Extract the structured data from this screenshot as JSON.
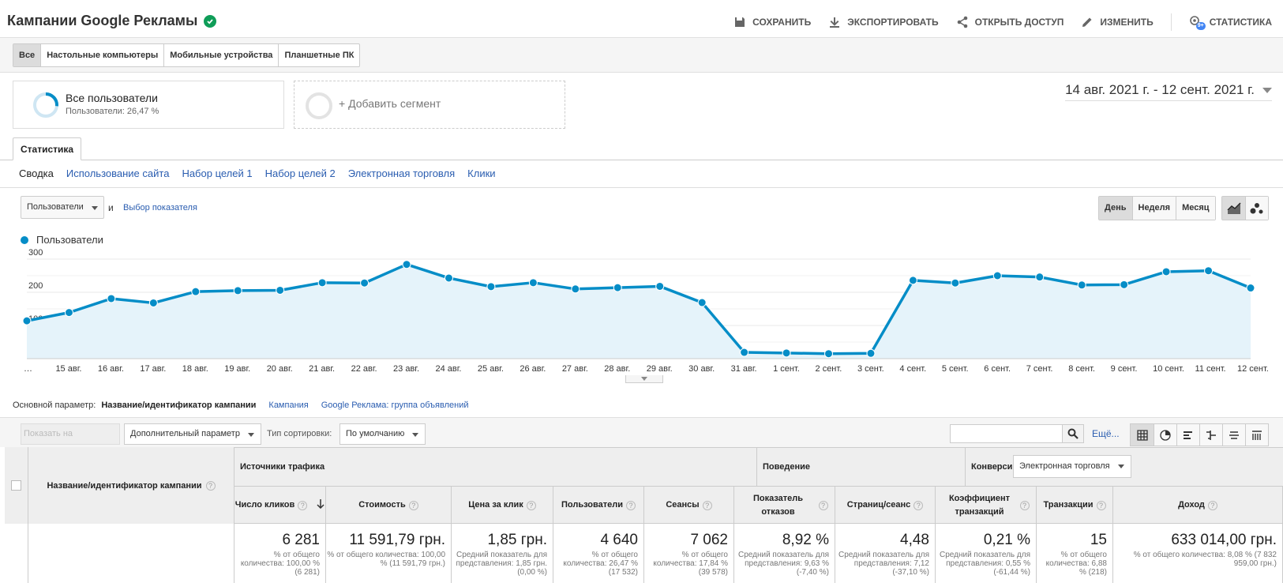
{
  "header": {
    "title": "Кампании Google Рекламы",
    "actions": {
      "save": "СОХРАНИТЬ",
      "export": "ЭКСПОРТИРОВАТЬ",
      "share": "ОТКРЫТЬ ДОСТУП",
      "edit": "ИЗМЕНИТЬ",
      "insights": "СТАТИСТИКА",
      "insights_badge": "9+"
    }
  },
  "device_tabs": [
    "Все",
    "Настольные компьютеры",
    "Мобильные устройства",
    "Планшетные ПК"
  ],
  "segment": {
    "title": "Все пользователи",
    "subtitle": "Пользователи: 26,47 %",
    "add_label": "+ Добавить сегмент"
  },
  "date_range": "14 авг. 2021 г. - 12 сент. 2021 г.",
  "stat_tab": "Статистика",
  "subnav": [
    "Сводка",
    "Использование сайта",
    "Набор целей 1",
    "Набор целей 2",
    "Электронная торговля",
    "Клики"
  ],
  "chart_controls": {
    "metric": "Пользователи",
    "and": "и",
    "pick_metric": "Выбор показателя",
    "periods": [
      "День",
      "Неделя",
      "Месяц"
    ]
  },
  "chart_data": {
    "type": "area",
    "series": [
      {
        "name": "Пользователи",
        "values": [
          114,
          139,
          181,
          168,
          202,
          205,
          206,
          229,
          228,
          284,
          243,
          217,
          229,
          210,
          214,
          218,
          169,
          19,
          17,
          15,
          16,
          236,
          228,
          250,
          246,
          222,
          223,
          262,
          265,
          213
        ]
      }
    ],
    "x": [
      "…",
      "15 авг.",
      "16 авг.",
      "17 авг.",
      "18 авг.",
      "19 авг.",
      "20 авг.",
      "21 авг.",
      "22 авг.",
      "23 авг.",
      "24 авг.",
      "25 авг.",
      "26 авг.",
      "27 авг.",
      "28 авг.",
      "29 авг.",
      "30 авг.",
      "31 авг.",
      "1 сент.",
      "2 сент.",
      "3 сент.",
      "4 сент.",
      "5 сент.",
      "6 сент.",
      "7 сент.",
      "8 сент.",
      "9 сент.",
      "10 сент.",
      "11 сент.",
      "12 сент."
    ],
    "y_ticks": [
      "300",
      "200",
      "100"
    ],
    "ylim": [
      0,
      300
    ],
    "color": "#058dc7",
    "fill": "#e5f3fa",
    "grid": true,
    "legend": "top-left"
  },
  "primary_dimension": {
    "label": "Основной параметр:",
    "active": "Название/идентификатор кампании",
    "options": [
      "Кампания",
      "Google Реклама: группа объявлений"
    ]
  },
  "toolbar": {
    "plot_button": "Показать на диаграмме",
    "secondary_dimension": "Дополнительный параметр",
    "sort_label": "Тип сортировки:",
    "sort_value": "По умолчанию",
    "search_placeholder": "",
    "more": "Ещё..."
  },
  "table": {
    "dimension_header": "Название/идентификатор кампании",
    "groups": {
      "acquisition": "Источники трафика",
      "behavior": "Поведение",
      "conversions": "Конверсии",
      "conversions_select": "Электронная торговля"
    },
    "columns": [
      {
        "label": "Число кликов",
        "total": "6 281",
        "sub": "% от общего количества: 100,00 % (6 281)"
      },
      {
        "label": "Стоимость",
        "total": "11 591,79 грн.",
        "sub": "% от общего количества: 100,00 % (11 591,79 грн.)"
      },
      {
        "label": "Цена за клик",
        "total": "1,85 грн.",
        "sub": "Средний показатель для представления: 1,85 грн. (0,00 %)"
      },
      {
        "label": "Пользователи",
        "total": "4 640",
        "sub": "% от общего количества: 26,47 % (17 532)"
      },
      {
        "label": "Сеансы",
        "total": "7 062",
        "sub": "% от общего количества: 17,84 % (39 578)"
      },
      {
        "label": "Показатель отказов",
        "total": "8,92 %",
        "sub": "Средний показатель для представления: 9,63 % (-7,40 %)"
      },
      {
        "label": "Страниц/сеанс",
        "total": "4,48",
        "sub": "Средний показатель для представления: 7,12 (-37,10 %)"
      },
      {
        "label": "Коэффициент транзакций",
        "total": "0,21 %",
        "sub": "Средний показатель для представления: 0,55 % (-61,44 %)"
      },
      {
        "label": "Транзакции",
        "total": "15",
        "sub": "% от общего количества: 6,88 % (218)"
      },
      {
        "label": "Доход",
        "total": "633 014,00 грн.",
        "sub": "% от общего количества: 8,08 % (7 832 959,00 грн.)"
      }
    ]
  }
}
